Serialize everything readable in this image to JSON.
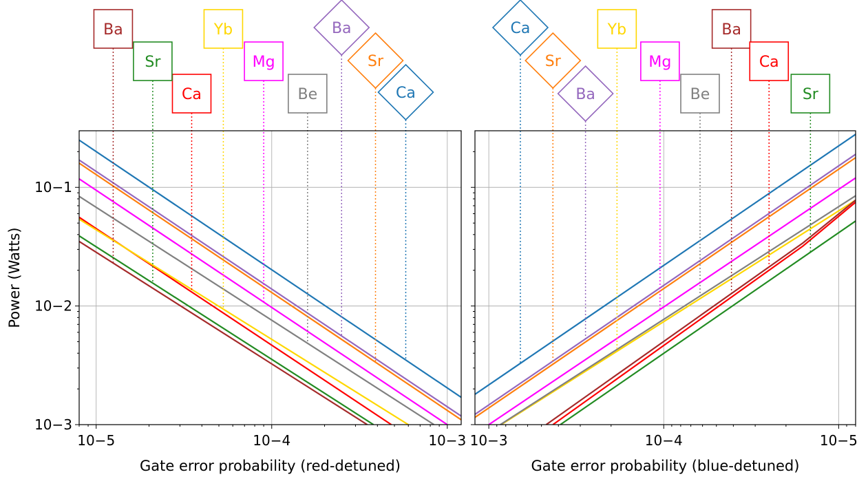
{
  "colors": {
    "Ba_red": "#a52a2a",
    "Ba_blue": "#9467bd",
    "Sr_red": "#228b22",
    "Sr_blue": "#ff7f0e",
    "Ca_red": "#ff0000",
    "Ca_blue": "#1f77b4",
    "Yb": "#ffd700",
    "Mg": "#ff00ff",
    "Be": "#808080"
  },
  "chart_data": [
    {
      "type": "line",
      "xlabel": "Gate error probability (red-detuned)",
      "ylabel": "Power (Watts)",
      "xscale": "log",
      "yscale": "log",
      "xlim": [
        8e-06,
        0.0012
      ],
      "ylim": [
        0.001,
        0.3
      ],
      "x_ticks": [
        {
          "label": "10−5",
          "value": 1e-05
        },
        {
          "label": "10−4",
          "value": 0.0001
        },
        {
          "label": "10−3",
          "value": 0.001
        }
      ],
      "y_ticks": [
        {
          "label": "10−3",
          "value": 0.001
        },
        {
          "label": "10−2",
          "value": 0.01
        },
        {
          "label": "10−1",
          "value": 0.1
        }
      ],
      "grid": true,
      "series": [
        {
          "name": "Ca",
          "shape": "diamond",
          "color_key": "Ca_blue",
          "marker_x": 0.00058,
          "x": [
            8e-06,
            0.0012
          ],
          "y": [
            0.25,
            0.0017
          ]
        },
        {
          "name": "Ba",
          "shape": "diamond",
          "color_key": "Ba_blue",
          "marker_x": 0.00025,
          "x": [
            8e-06,
            0.0012
          ],
          "y": [
            0.17,
            0.00118
          ]
        },
        {
          "name": "Sr",
          "shape": "diamond",
          "color_key": "Sr_blue",
          "marker_x": 0.00039,
          "x": [
            8e-06,
            0.0012
          ],
          "y": [
            0.16,
            0.0011
          ]
        },
        {
          "name": "Mg",
          "shape": "box",
          "color_key": "Mg",
          "marker_x": 9e-05,
          "x": [
            8e-06,
            0.001
          ],
          "y": [
            0.118,
            0.001
          ]
        },
        {
          "name": "Be",
          "shape": "box",
          "color_key": "Be",
          "marker_x": 0.00016,
          "x": [
            8e-06,
            0.00084
          ],
          "y": [
            0.084,
            0.001
          ]
        },
        {
          "name": "Ca",
          "shape": "box",
          "color_key": "Ca_red",
          "marker_x": 3.5e-05,
          "x": [
            8e-06,
            0.00048
          ],
          "y": [
            0.056,
            0.001
          ]
        },
        {
          "name": "Yb",
          "shape": "box",
          "color_key": "Yb",
          "marker_x": 5.3e-05,
          "x": [
            8e-06,
            0.0006
          ],
          "y": [
            0.054,
            0.001
          ]
        },
        {
          "name": "Sr",
          "shape": "box",
          "color_key": "Sr_red",
          "marker_x": 2.1e-05,
          "x": [
            8e-06,
            0.00038
          ],
          "y": [
            0.039,
            0.001
          ]
        },
        {
          "name": "Ba",
          "shape": "box",
          "color_key": "Ba_red",
          "marker_x": 1.25e-05,
          "x": [
            8e-06,
            0.00035
          ],
          "y": [
            0.035,
            0.001
          ]
        }
      ]
    },
    {
      "type": "line",
      "xlabel": "Gate error probability (blue-detuned)",
      "ylabel": "",
      "xscale": "log",
      "x_reversed": true,
      "yscale": "log",
      "xlim": [
        0.0012,
        8e-06
      ],
      "ylim": [
        0.001,
        0.3
      ],
      "x_ticks": [
        {
          "label": "10−3",
          "value": 0.001
        },
        {
          "label": "10−4",
          "value": 0.0001
        },
        {
          "label": "10−5",
          "value": 1e-05
        }
      ],
      "grid": true,
      "series": [
        {
          "name": "Ca",
          "shape": "diamond",
          "color_key": "Ca_blue",
          "marker_x": 0.00066,
          "x": [
            0.0012,
            8e-06
          ],
          "y": [
            0.0018,
            0.28
          ]
        },
        {
          "name": "Sr",
          "shape": "diamond",
          "color_key": "Sr_blue",
          "marker_x": 0.00043,
          "x": [
            0.0012,
            8e-06
          ],
          "y": [
            0.00115,
            0.178
          ]
        },
        {
          "name": "Ba",
          "shape": "diamond",
          "color_key": "Ba_blue",
          "marker_x": 0.00028,
          "x": [
            0.0012,
            8e-06
          ],
          "y": [
            0.00122,
            0.19
          ]
        },
        {
          "name": "Yb",
          "shape": "box",
          "color_key": "Yb",
          "marker_x": 0.000185,
          "x": [
            0.00085,
            8e-06
          ],
          "y": [
            0.001,
            0.078
          ]
        },
        {
          "name": "Mg",
          "shape": "box",
          "color_key": "Mg",
          "marker_x": 0.000105,
          "x": [
            0.001,
            8e-06
          ],
          "y": [
            0.001,
            0.12
          ]
        },
        {
          "name": "Be",
          "shape": "box",
          "color_key": "Be",
          "marker_x": 6.2e-05,
          "x": [
            0.00086,
            8e-06
          ],
          "y": [
            0.001,
            0.085
          ]
        },
        {
          "name": "Ba",
          "shape": "box",
          "color_key": "Ba_red",
          "marker_x": 4.1e-05,
          "x": [
            0.00047,
            1.6e-05,
            8e-06
          ],
          "y": [
            0.001,
            0.034,
            0.078
          ]
        },
        {
          "name": "Ca",
          "shape": "box",
          "color_key": "Ca_red",
          "marker_x": 2.5e-05,
          "x": [
            0.00043,
            1.6e-05,
            8e-06
          ],
          "y": [
            0.001,
            0.032,
            0.075
          ]
        },
        {
          "name": "Sr",
          "shape": "box",
          "color_key": "Sr_red",
          "marker_x": 1.45e-05,
          "x": [
            0.00039,
            8e-06
          ],
          "y": [
            0.001,
            0.052
          ]
        }
      ]
    }
  ]
}
